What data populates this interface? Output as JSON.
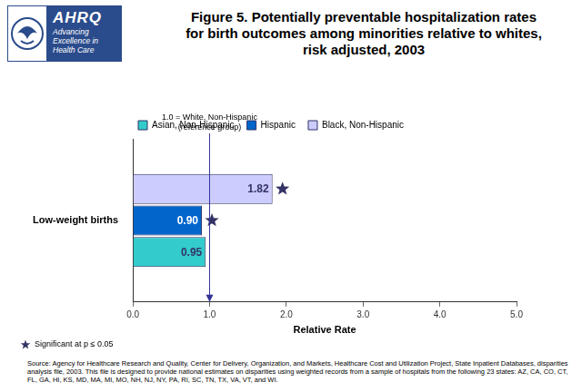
{
  "logo": {
    "name": "AHRQ",
    "tagline": "Advancing Excellence in Health Care"
  },
  "chart_data": {
    "type": "bar",
    "orientation": "horizontal",
    "title": "Figure 5. Potentially preventable hospitalization rates for birth outcomes among minorities relative to whites, risk adjusted, 2003",
    "categories": [
      "Low-weight births"
    ],
    "series": [
      {
        "name": "Asian, Non-Hispanic",
        "color": "#33CCCC",
        "values": [
          0.95
        ],
        "value_labels": [
          "0.95"
        ],
        "significant": [
          false
        ]
      },
      {
        "name": "Hispanic",
        "color": "#0066CC",
        "values": [
          0.9
        ],
        "value_labels": [
          "0.90"
        ],
        "significant": [
          true
        ]
      },
      {
        "name": "Black, Non-Hispanic",
        "color": "#CCCCFF",
        "values": [
          1.82
        ],
        "value_labels": [
          "1.82"
        ],
        "significant": [
          true
        ]
      }
    ],
    "xlabel": "Relative Rate",
    "xlim": [
      0,
      5
    ],
    "xticks": [
      {
        "value": 0,
        "label": "0.0"
      },
      {
        "value": 1,
        "label": "1.0"
      },
      {
        "value": 2,
        "label": "2.0"
      },
      {
        "value": 3,
        "label": "3.0"
      },
      {
        "value": 4,
        "label": "4.0"
      },
      {
        "value": 5,
        "label": "5.0"
      }
    ],
    "grid": false,
    "legend": "top",
    "data_labels": true,
    "reference_line": {
      "value": 1,
      "label": [
        "1.0 = White, Non-Hispanic",
        "(reference group)"
      ]
    },
    "note": "Significant at p ≤ 0.05",
    "source": "Source: Agency for Healthcare Research and Quality, Center for Delivery, Organization, and Markets, Healthcare Cost and Utilization Project, State Inpatient Databases, disparities analysis file, 2003. This file is designed to provide national estimates on disparities using weighted records from a sample of hospitals from the following 23 states: AZ, CA, CO, CT, FL, GA, HI, KS, MD, MA, MI, MO, NH, NJ, NY, PA, RI, SC, TN, TX, VA, VT, and WI."
  }
}
